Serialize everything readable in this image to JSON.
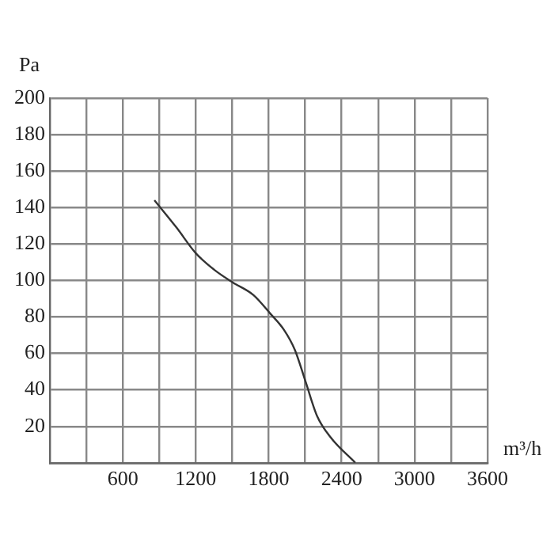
{
  "chart_data": {
    "type": "line",
    "xlabel": "m³/h",
    "ylabel": "Pa",
    "x": [
      860,
      1042,
      1200,
      1350,
      1503,
      1675,
      1811,
      1925,
      2015,
      2106,
      2196,
      2309,
      2513
    ],
    "series": [
      {
        "color": "#333333",
        "values": [
          144,
          129,
          115,
          106,
          99,
          92,
          82,
          73,
          62,
          44,
          26,
          14,
          0
        ]
      }
    ],
    "xlim": [
      0,
      3600
    ],
    "xticks": [
      {
        "value": 300,
        "label": null
      },
      600,
      {
        "value": 900,
        "label": null
      },
      1200,
      {
        "value": 1500,
        "label": null
      },
      1800,
      {
        "value": 2100,
        "label": null
      },
      2400,
      {
        "value": 2700,
        "label": null
      },
      3000,
      {
        "value": 3300,
        "label": null
      },
      3600
    ],
    "ylim": [
      0,
      200
    ],
    "yticks": [
      {
        "value": 0,
        "label": null
      },
      20,
      40,
      60,
      80,
      100,
      120,
      140,
      160,
      180,
      200
    ],
    "grid": true,
    "legend": false,
    "marker": "none",
    "line_style": "solid"
  }
}
